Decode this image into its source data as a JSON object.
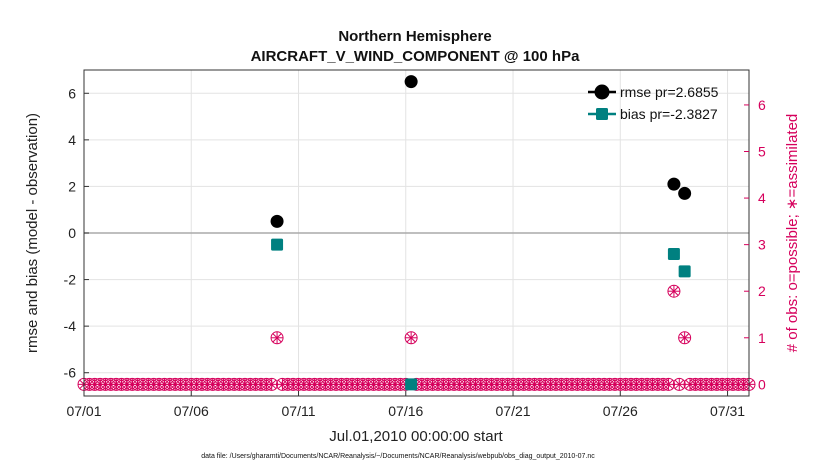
{
  "chart_data": {
    "type": "scatter",
    "title": "Northern Hemisphere",
    "subtitle": "AIRCRAFT_V_WIND_COMPONENT @ 100 hPa",
    "xlabel": "Jul.01,2010 00:00:00 start",
    "ylabel": "rmse and bias (model - observation)",
    "ylabel_right": "# of obs: o=possible; ∗=assimilated",
    "x_ticks": [
      "07/01",
      "07/06",
      "07/11",
      "07/16",
      "07/21",
      "07/26",
      "07/31"
    ],
    "x_tick_days": [
      1,
      6,
      11,
      16,
      21,
      26,
      31
    ],
    "xlim": [
      1,
      32
    ],
    "ylim": [
      -7,
      7
    ],
    "y_ticks": [
      -6,
      -4,
      -2,
      0,
      2,
      4,
      6
    ],
    "ylim_right": [
      -0.25,
      6.75
    ],
    "y_ticks_right": [
      0,
      1,
      2,
      3,
      4,
      5,
      6
    ],
    "grid": true,
    "legend_position": "top-right",
    "series": [
      {
        "name": "rmse pr=2.6855",
        "color": "#000000",
        "marker": "circle",
        "x": [
          10.0,
          16.25,
          28.5,
          29.0
        ],
        "values": [
          0.5,
          6.5,
          2.1,
          1.7
        ]
      },
      {
        "name": "bias pr=-2.3827",
        "color": "#008080",
        "marker": "square",
        "x": [
          10.0,
          16.25,
          28.5,
          29.0
        ],
        "values": [
          -0.5,
          -6.5,
          -0.9,
          -1.65
        ]
      }
    ],
    "obs_counts": {
      "color": "#d6005c",
      "x": [
        1.0,
        1.25,
        1.5,
        1.75,
        2.0,
        2.25,
        2.5,
        2.75,
        3.0,
        3.25,
        3.5,
        3.75,
        4.0,
        4.25,
        4.5,
        4.75,
        5.0,
        5.25,
        5.5,
        5.75,
        6.0,
        6.25,
        6.5,
        6.75,
        7.0,
        7.25,
        7.5,
        7.75,
        8.0,
        8.25,
        8.5,
        8.75,
        9.0,
        9.25,
        9.5,
        9.75,
        10.0,
        10.25,
        10.5,
        10.75,
        11.0,
        11.25,
        11.5,
        11.75,
        12.0,
        12.25,
        12.5,
        12.75,
        13.0,
        13.25,
        13.5,
        13.75,
        14.0,
        14.25,
        14.5,
        14.75,
        15.0,
        15.25,
        15.5,
        15.75,
        16.0,
        16.25,
        16.5,
        16.75,
        17.0,
        17.25,
        17.5,
        17.75,
        18.0,
        18.25,
        18.5,
        18.75,
        19.0,
        19.25,
        19.5,
        19.75,
        20.0,
        20.25,
        20.5,
        20.75,
        21.0,
        21.25,
        21.5,
        21.75,
        22.0,
        22.25,
        22.5,
        22.75,
        23.0,
        23.25,
        23.5,
        23.75,
        24.0,
        24.25,
        24.5,
        24.75,
        25.0,
        25.25,
        25.5,
        25.75,
        26.0,
        26.25,
        26.5,
        26.75,
        27.0,
        27.25,
        27.5,
        27.75,
        28.0,
        28.25,
        28.5,
        28.75,
        29.0,
        29.25,
        29.5,
        29.75,
        30.0,
        30.25,
        30.5,
        30.75,
        31.0,
        31.25,
        31.5,
        31.75,
        32.0
      ],
      "possible": [
        0,
        0,
        0,
        0,
        0,
        0,
        0,
        0,
        0,
        0,
        0,
        0,
        0,
        0,
        0,
        0,
        0,
        0,
        0,
        0,
        0,
        0,
        0,
        0,
        0,
        0,
        0,
        0,
        0,
        0,
        0,
        0,
        0,
        0,
        0,
        0,
        1,
        0,
        0,
        0,
        0,
        0,
        0,
        0,
        0,
        0,
        0,
        0,
        0,
        0,
        0,
        0,
        0,
        0,
        0,
        0,
        0,
        0,
        0,
        0,
        0,
        1,
        0,
        0,
        0,
        0,
        0,
        0,
        0,
        0,
        0,
        0,
        0,
        0,
        0,
        0,
        0,
        0,
        0,
        0,
        0,
        0,
        0,
        0,
        0,
        0,
        0,
        0,
        0,
        0,
        0,
        0,
        0,
        0,
        0,
        0,
        0,
        0,
        0,
        0,
        0,
        0,
        0,
        0,
        0,
        0,
        0,
        0,
        0,
        0,
        2,
        0,
        1,
        0,
        0,
        0,
        0,
        0,
        0,
        0,
        0,
        0,
        0,
        0,
        0
      ],
      "assimilated": [
        0,
        0,
        0,
        0,
        0,
        0,
        0,
        0,
        0,
        0,
        0,
        0,
        0,
        0,
        0,
        0,
        0,
        0,
        0,
        0,
        0,
        0,
        0,
        0,
        0,
        0,
        0,
        0,
        0,
        0,
        0,
        0,
        0,
        0,
        0,
        0,
        1,
        0,
        0,
        0,
        0,
        0,
        0,
        0,
        0,
        0,
        0,
        0,
        0,
        0,
        0,
        0,
        0,
        0,
        0,
        0,
        0,
        0,
        0,
        0,
        0,
        1,
        0,
        0,
        0,
        0,
        0,
        0,
        0,
        0,
        0,
        0,
        0,
        0,
        0,
        0,
        0,
        0,
        0,
        0,
        0,
        0,
        0,
        0,
        0,
        0,
        0,
        0,
        0,
        0,
        0,
        0,
        0,
        0,
        0,
        0,
        0,
        0,
        0,
        0,
        0,
        0,
        0,
        0,
        0,
        0,
        0,
        0,
        0,
        0,
        2,
        0,
        1,
        0,
        0,
        0,
        0,
        0,
        0,
        0,
        0,
        0,
        0,
        0,
        0
      ]
    }
  },
  "footer": "data file: /Users/gharamti/Documents/NCAR/Reanalysis/~/Documents/NCAR/Reanalysis/webpub/obs_diag_output_2010-07.nc"
}
